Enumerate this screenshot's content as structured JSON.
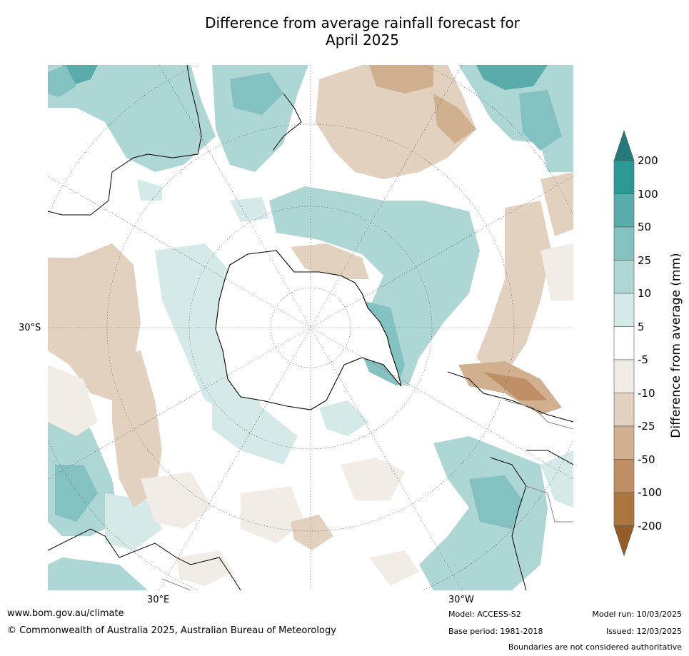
{
  "title": {
    "line1": "Difference from average rainfall forecast for",
    "line2": "April 2025"
  },
  "map": {
    "projection": "south-polar-stereographic",
    "lat_label": "30°S",
    "lon_label_east": "30°E",
    "lon_label_west": "30°W"
  },
  "colorbar": {
    "title": "Difference from average (mm)",
    "ticks": [
      "200",
      "100",
      "50",
      "25",
      "10",
      "5",
      "-5",
      "-10",
      "-25",
      "-50",
      "-100",
      "-200"
    ],
    "colors": {
      "above_200": "#237a78",
      "100_200": "#2e9895",
      "50_100": "#5aacab",
      "25_50": "#84c2c1",
      "10_25": "#aed6d5",
      "5_10": "#d5e9e8",
      "neutral": "#ffffff",
      "n5_n10": "#f1ece5",
      "n10_n25": "#e3d1c0",
      "n25_n50": "#d1b090",
      "n50_n100": "#bf9066",
      "n100_n200": "#ad763f",
      "below_n200": "#935d25"
    }
  },
  "footer": {
    "website": "www.bom.gov.au/climate",
    "copyright": "© Commonwealth of Australia 2025, Australian Bureau of Meteorology",
    "model": "Model: ACCESS-S2",
    "base_period": "Base period: 1981-2018",
    "model_run": "Model run: 10/03/2025",
    "issued": "Issued: 12/03/2025",
    "disclaimer": "Boundaries are not considered authoritative"
  }
}
